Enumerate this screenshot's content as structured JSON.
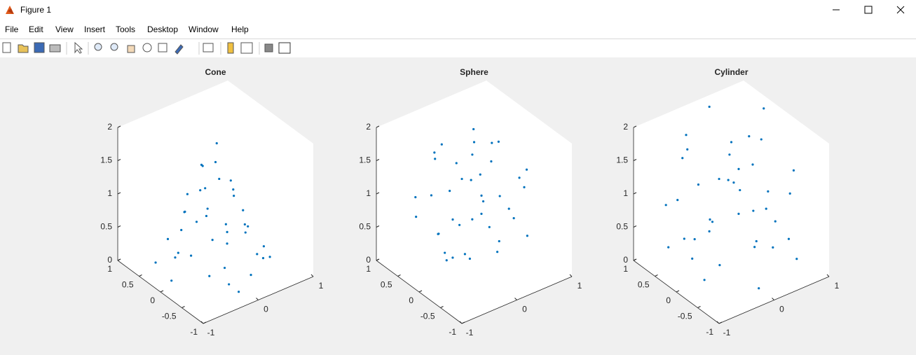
{
  "window": {
    "title": "Figure 1"
  },
  "menu": [
    "File",
    "Edit",
    "View",
    "Insert",
    "Tools",
    "Desktop",
    "Window",
    "Help"
  ],
  "chart_data": [
    {
      "type": "scatter3d",
      "title": "Cone",
      "color": "#0072bd",
      "x": [
        0.1,
        -0.5,
        0.6,
        -0.3,
        0.2,
        0.0,
        -0.2,
        0.3,
        -0.6,
        0.5,
        0.1,
        -0.1,
        0.4,
        -0.4,
        0.7,
        -0.7,
        0.2,
        0.0,
        -0.3,
        0.3,
        -0.2,
        0.6,
        -0.5,
        0.1,
        0.2,
        -0.1,
        0.4,
        -0.6,
        0.0,
        0.5,
        -0.4,
        0.3,
        -0.2,
        0.8,
        -0.8,
        0.1,
        -0.1,
        0.2,
        -0.3,
        0.6
      ],
      "y": [
        0.2,
        0.3,
        -0.2,
        -0.6,
        0.5,
        0.0,
        0.1,
        -0.3,
        -0.2,
        0.4,
        -0.7,
        0.6,
        0.1,
        0.2,
        0.2,
        0.5,
        -0.5,
        0.3,
        -0.2,
        0.6,
        -0.8,
        -0.5,
        -0.5,
        0.1,
        -0.1,
        -0.4,
        -0.6,
        0.1,
        0.8,
        0.0,
        0.6,
        0.3,
        0.4,
        -0.1,
        0.0,
        -0.3,
        0.2,
        0.7,
        -0.7,
        0.5
      ],
      "z": [
        0.3,
        0.2,
        0.1,
        0.4,
        0.9,
        1.6,
        1.2,
        0.7,
        0.5,
        0.3,
        0.2,
        0.6,
        1.0,
        0.9,
        0.2,
        0.1,
        0.8,
        1.4,
        1.1,
        0.4,
        0.1,
        0.2,
        0.3,
        1.8,
        1.3,
        0.6,
        0.3,
        0.4,
        0.2,
        0.7,
        0.3,
        1.1,
        1.0,
        0.1,
        0.1,
        1.2,
        1.5,
        0.3,
        0.2,
        0.1
      ],
      "xlim": [
        -1,
        1
      ],
      "ylim": [
        -1,
        1
      ],
      "zlim": [
        0,
        2
      ],
      "xticks": [
        -1,
        0,
        1
      ],
      "yticks": [
        -1,
        -0.5,
        0,
        0.5,
        1
      ],
      "zticks": [
        0,
        0.5,
        1,
        1.5,
        2
      ]
    },
    {
      "type": "scatter3d",
      "title": "Sphere",
      "color": "#0072bd",
      "x": [
        0.2,
        -0.5,
        0.6,
        -0.3,
        0.1,
        0.0,
        0.0,
        -0.7,
        0.5,
        0.3,
        -0.2,
        0.7,
        -0.4,
        0.1,
        -0.6,
        0.4,
        -0.1,
        0.8,
        -0.8,
        0.2,
        -0.3,
        0.5,
        -0.5,
        0.1,
        0.3,
        -0.2,
        0.6,
        -0.4,
        0.0,
        0.4,
        -0.7,
        0.2,
        -0.1,
        0.9,
        -0.9,
        0.0,
        -0.3,
        0.3,
        0.6,
        -0.5
      ],
      "y": [
        0.3,
        0.2,
        -0.4,
        -0.6,
        0.7,
        0.0,
        0.1,
        0.1,
        0.5,
        -0.2,
        0.5,
        0.3,
        -0.3,
        -0.8,
        0.6,
        0.1,
        -0.3,
        -0.2,
        -0.2,
        0.6,
        0.3,
        -0.6,
        -0.6,
        0.2,
        0.8,
        -0.8,
        0.2,
        0.4,
        -0.4,
        -0.3,
        -0.4,
        -0.1,
        0.8,
        0.1,
        0.2,
        0.5,
        -0.1,
        0.4,
        0.6,
        0.0
      ],
      "z": [
        1.5,
        0.6,
        1.2,
        1.4,
        0.8,
        1.9,
        0.1,
        1.3,
        1.0,
        0.4,
        1.7,
        0.7,
        0.5,
        1.1,
        1.0,
        1.7,
        1.0,
        1.3,
        0.9,
        0.3,
        0.2,
        0.6,
        1.2,
        1.2,
        1.1,
        0.7,
        1.6,
        1.6,
        1.8,
        0.9,
        0.6,
        0.6,
        1.4,
        1.0,
        1.0,
        0.5,
        1.5,
        1.8,
        0.6,
        0.3
      ],
      "xlim": [
        -1,
        1
      ],
      "ylim": [
        -1,
        1
      ],
      "zlim": [
        0,
        2
      ],
      "xticks": [
        -1,
        0,
        1
      ],
      "yticks": [
        -1,
        -0.5,
        0,
        0.5,
        1
      ],
      "zticks": [
        0,
        0.5,
        1,
        1.5,
        2
      ]
    },
    {
      "type": "scatter3d",
      "title": "Cylinder",
      "color": "#0072bd",
      "x": [
        0.2,
        -0.7,
        0.6,
        -0.3,
        0.1,
        0.0,
        0.5,
        -0.9,
        0.6,
        0.3,
        -0.2,
        0.9,
        -0.6,
        0.1,
        -0.6,
        0.4,
        -0.1,
        0.9,
        -0.9,
        0.2,
        -0.4,
        0.5,
        -0.5,
        0.1,
        0.3,
        -0.2,
        0.7,
        -0.5,
        0.0,
        0.4,
        -0.8,
        0.8,
        -0.1,
        0.9,
        -0.8,
        0.0,
        -0.3,
        0.6,
        0.7,
        -0.4
      ],
      "y": [
        0.3,
        0.2,
        -0.6,
        -0.9,
        0.9,
        0.0,
        0.1,
        0.1,
        0.6,
        -0.2,
        0.8,
        0.3,
        -0.5,
        -0.9,
        0.7,
        0.1,
        -0.3,
        -0.3,
        -0.3,
        0.7,
        0.4,
        -0.7,
        -0.7,
        0.2,
        0.9,
        -0.9,
        0.2,
        0.5,
        -0.5,
        -0.3,
        -0.4,
        -0.5,
        0.9,
        0.4,
        0.5,
        0.5,
        -0.1,
        -0.2,
        0.7,
        0.0
      ],
      "z": [
        1.5,
        0.6,
        1.2,
        1.4,
        0.8,
        1.9,
        0.1,
        1.3,
        1.0,
        0.4,
        1.7,
        0.7,
        0.5,
        1.1,
        0.2,
        1.8,
        1.0,
        1.3,
        0.9,
        0.3,
        0.1,
        0.6,
        1.8,
        1.2,
        1.9,
        0.2,
        1.6,
        1.6,
        1.8,
        0.9,
        0.3,
        0.1,
        1.4,
        1.9,
        1.0,
        0.5,
        1.5,
        0.2,
        0.6,
        0.7
      ],
      "xlim": [
        -1,
        1
      ],
      "ylim": [
        -1,
        1
      ],
      "zlim": [
        0,
        2
      ],
      "xticks": [
        -1,
        0,
        1
      ],
      "yticks": [
        -1,
        -0.5,
        0,
        0.5,
        1
      ],
      "zticks": [
        0,
        0.5,
        1,
        1.5,
        2
      ]
    }
  ]
}
